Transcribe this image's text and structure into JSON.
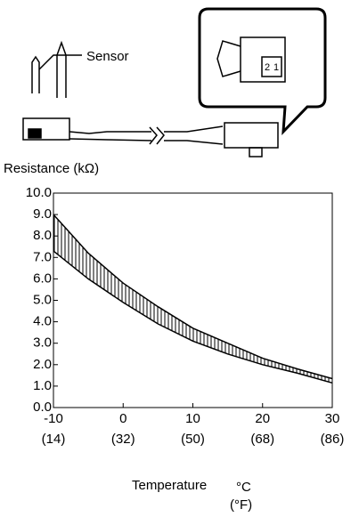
{
  "chart_data": {
    "type": "band",
    "labels": {
      "sensor": "Sensor",
      "y_axis": "Resistance (kΩ)",
      "x_axis": "Temperature",
      "x_unit_c": "°C",
      "x_unit_f": "(°F)",
      "pin_2": "2",
      "pin_1": "1"
    },
    "band": {
      "x": [
        -10,
        -5,
        0,
        5,
        10,
        15,
        20,
        25,
        30
      ],
      "upper": [
        9.0,
        7.2,
        5.8,
        4.7,
        3.7,
        3.0,
        2.3,
        1.8,
        1.35
      ],
      "lower": [
        7.3,
        6.0,
        4.9,
        3.9,
        3.1,
        2.5,
        2.0,
        1.6,
        1.15
      ]
    },
    "color": "#000000",
    "xlim": [
      -10,
      30
    ],
    "xticks": [
      -10,
      0,
      10,
      20,
      30
    ],
    "xticks_secondary": [
      "(14)",
      "(32)",
      "(50)",
      "(68)",
      "(86)"
    ],
    "ylim": [
      0,
      10
    ],
    "yticks": [
      {
        "value": 0,
        "label": "0.0"
      },
      {
        "value": 1,
        "label": "1.0"
      },
      {
        "value": 2,
        "label": "2.0"
      },
      {
        "value": 3,
        "label": "3.0"
      },
      {
        "value": 4,
        "label": "4.0"
      },
      {
        "value": 5,
        "label": "5.0"
      },
      {
        "value": 6,
        "label": "6.0"
      },
      {
        "value": 7,
        "label": "7.0"
      },
      {
        "value": 8,
        "label": "8.0"
      },
      {
        "value": 9,
        "label": "9.0"
      },
      {
        "value": 10,
        "label": "10.0"
      }
    ],
    "grid": false
  }
}
